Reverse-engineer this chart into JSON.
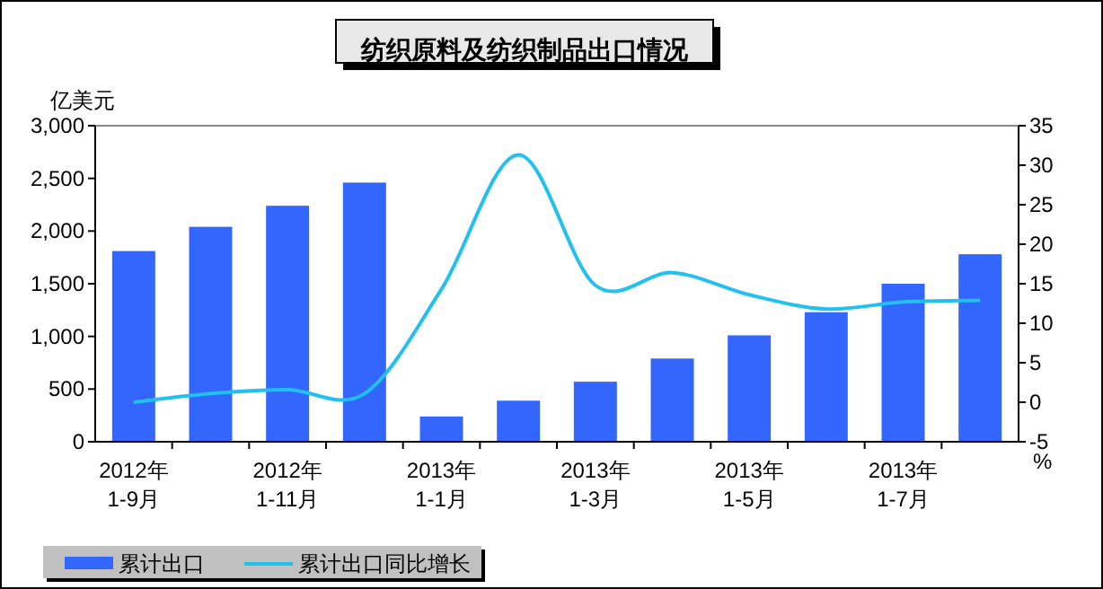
{
  "chart_data": {
    "type": "bar",
    "title": "纺织原料及纺织制品出口情况",
    "ylabel": "亿美元",
    "y2label": "%",
    "categories": [
      "2012年\n1-9月",
      null,
      "2012年\n1-11月",
      null,
      "2013年\n1-1月",
      null,
      "2013年\n1-3月",
      null,
      "2013年\n1-5月",
      null,
      "2013年\n1-7月",
      null
    ],
    "series": [
      {
        "name": "累计出口",
        "color": "#3366ff",
        "values": [
          1810,
          2040,
          2240,
          2460,
          240,
          390,
          570,
          790,
          1010,
          1230,
          1500,
          1780
        ]
      },
      {
        "name": "累计出口同比增长",
        "type": "line",
        "axis": "y2",
        "color": "#22c0ee",
        "values": [
          0,
          1.1,
          1.6,
          1.1,
          14.3,
          31.3,
          14.8,
          16.4,
          13.6,
          11.8,
          12.7,
          12.9
        ]
      }
    ],
    "ylim": [
      0,
      3000
    ],
    "yticks": [
      0,
      {
        "value": 500,
        "label": "500"
      },
      {
        "value": 1000,
        "label": "1,000"
      },
      {
        "value": 1500,
        "label": "1,500"
      },
      {
        "value": 2000,
        "label": "2,000"
      },
      {
        "value": 2500,
        "label": "2,500"
      },
      {
        "value": 3000,
        "label": "3,000"
      }
    ],
    "y2lim": [
      -5,
      35
    ],
    "y2ticks": [
      -5,
      0,
      5,
      10,
      15,
      20,
      25,
      30,
      35
    ],
    "grid": false,
    "legend": "bottom left"
  }
}
